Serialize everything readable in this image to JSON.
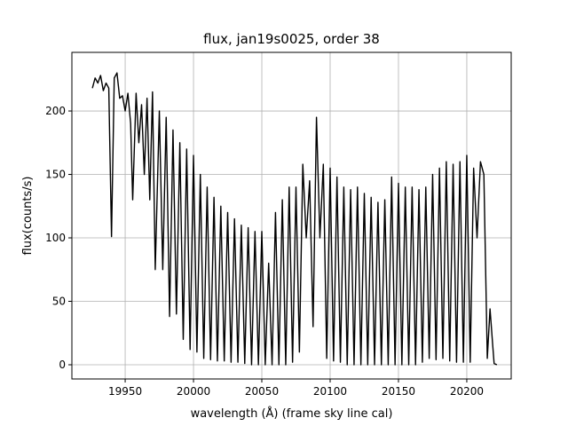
{
  "chart_data": {
    "type": "line",
    "title": "flux, jan19s0025, order 38",
    "x_label": "wavelength (Å) (frame sky line cal)",
    "y_label": "flux(counts/s)",
    "grid": true,
    "xlim": [
      19911.0,
      20232.5
    ],
    "ylim": [
      -11.2,
      246.2
    ],
    "xticks": [
      19950,
      20000,
      20050,
      20100,
      20150,
      20200
    ],
    "yticks": [
      0,
      50,
      100,
      150,
      200
    ],
    "series": [
      {
        "name": "flux",
        "color": "#000000",
        "x": [
          19926,
          19928,
          19930,
          19932,
          19934,
          19936,
          19938,
          19940,
          19942,
          19944,
          19946,
          19948,
          19950,
          19952,
          19954,
          19955.5,
          19958,
          19960,
          19962,
          19964,
          19966,
          19968,
          19970,
          19972,
          19975,
          19977.5,
          19980,
          19982.5,
          19985,
          19987.5,
          19990,
          19992.5,
          19995,
          19997.5,
          20000,
          20002.5,
          20005,
          20007.5,
          20010,
          20012.5,
          20015,
          20017.5,
          20020,
          20022.5,
          20025,
          20027.5,
          20030,
          20032.5,
          20035,
          20037.5,
          20040,
          20042.5,
          20045,
          20047.5,
          20050,
          20052.5,
          20055,
          20057.5,
          20060,
          20062.5,
          20065,
          20067.5,
          20070,
          20072.5,
          20075,
          20077.5,
          20080,
          20082.5,
          20085,
          20087.5,
          20090,
          20092.5,
          20095,
          20097.5,
          20100,
          20102.5,
          20105,
          20107.5,
          20110,
          20112.5,
          20115,
          20117.5,
          20120,
          20122.5,
          20125,
          20127.5,
          20130,
          20132.5,
          20135,
          20137.5,
          20140,
          20142.5,
          20145,
          20147.5,
          20150,
          20152.5,
          20155,
          20157.5,
          20160,
          20162.5,
          20165,
          20167.5,
          20170,
          20172.5,
          20175,
          20177.5,
          20180,
          20182.5,
          20185,
          20187.5,
          20190,
          20192.5,
          20195,
          20197.5,
          20200,
          20202.5,
          20205,
          20207.5,
          20210,
          20212.5,
          20215,
          20217,
          20219,
          20220,
          20222
        ],
        "values": [
          218,
          226,
          222,
          228,
          216,
          222,
          218,
          101,
          226,
          230,
          210,
          212,
          200,
          214,
          190,
          130,
          214,
          175,
          205,
          150,
          210,
          130,
          215,
          75,
          200,
          75,
          195,
          38,
          185,
          40,
          175,
          20,
          170,
          12,
          165,
          10,
          150,
          5,
          140,
          4,
          132,
          3,
          125,
          3,
          120,
          2,
          115,
          2,
          110,
          1,
          108,
          0,
          105,
          0,
          105,
          0,
          80,
          0,
          120,
          0,
          130,
          0,
          140,
          2,
          140,
          10,
          158,
          100,
          145,
          30,
          195,
          100,
          158,
          5,
          155,
          3,
          148,
          2,
          140,
          0,
          138,
          0,
          140,
          0,
          135,
          0,
          132,
          0,
          128,
          0,
          130,
          0,
          148,
          0,
          143,
          0,
          140,
          0,
          140,
          0,
          138,
          2,
          140,
          5,
          150,
          4,
          155,
          5,
          160,
          3,
          158,
          2,
          160,
          2,
          165,
          2,
          155,
          100,
          160,
          150,
          5,
          44,
          15,
          1,
          0
        ]
      }
    ]
  }
}
